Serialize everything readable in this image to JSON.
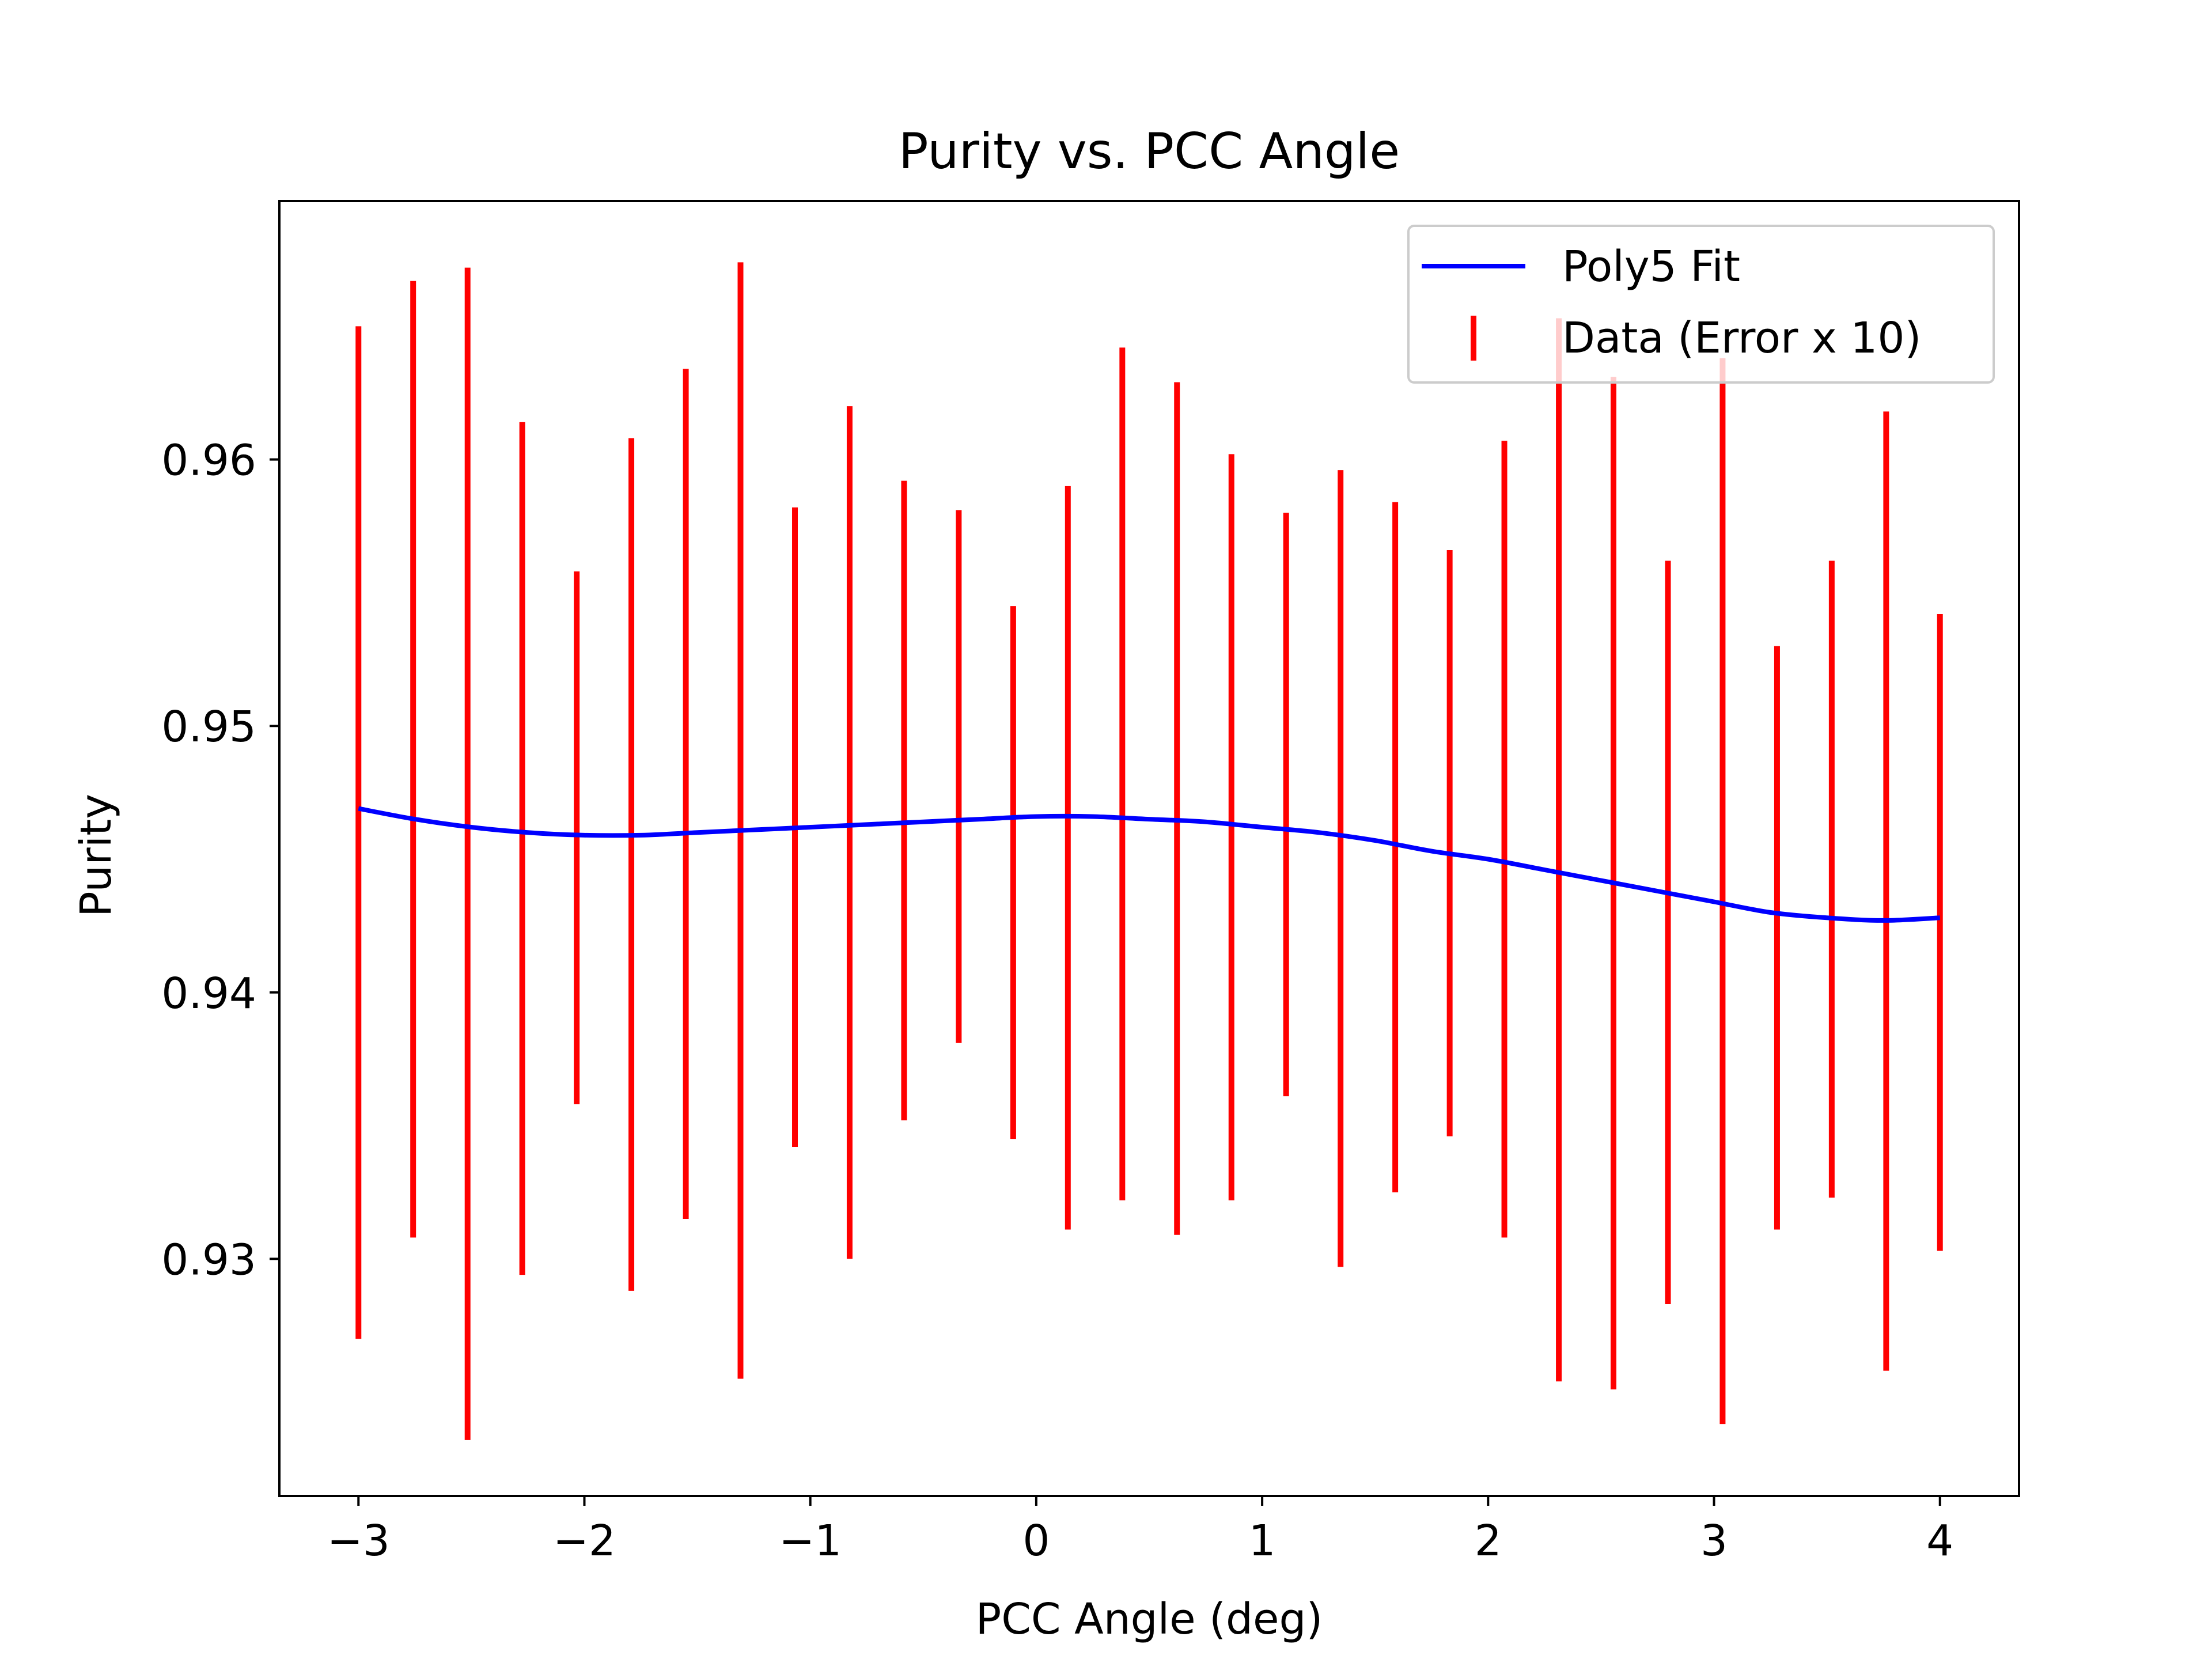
{
  "chart_data": {
    "type": "line",
    "title": "Purity vs. PCC Angle",
    "xlabel": "PCC Angle (deg)",
    "ylabel": "Purity",
    "xlim": [
      -3.35,
      4.35
    ],
    "ylim": [
      0.9211,
      0.9697
    ],
    "grid": false,
    "legend_position": "top-right",
    "x_ticks": [
      -3,
      -2,
      -1,
      0,
      1,
      2,
      3,
      4
    ],
    "x_tick_labels": [
      "−3",
      "−2",
      "−1",
      "0",
      "1",
      "2",
      "3",
      "4"
    ],
    "y_ticks": [
      0.93,
      0.94,
      0.95,
      0.96
    ],
    "y_tick_labels": [
      "0.93",
      "0.94",
      "0.95",
      "0.96"
    ],
    "series": [
      {
        "name": "Poly5 Fit",
        "kind": "line",
        "color": "#0000ff",
        "x": [
          -3.0,
          -2.75,
          -2.5,
          -2.25,
          -2.0,
          -1.75,
          -1.5,
          -1.25,
          -1.0,
          -0.75,
          -0.5,
          -0.25,
          0.0,
          0.25,
          0.5,
          0.75,
          1.0,
          1.25,
          1.5,
          1.75,
          2.0,
          2.25,
          2.5,
          2.75,
          3.0,
          3.25,
          3.5,
          3.75,
          4.0
        ],
        "y": [
          0.9469,
          0.9465,
          0.9462,
          0.946,
          0.9459,
          0.9459,
          0.946,
          0.9461,
          0.9462,
          0.9463,
          0.9464,
          0.9465,
          0.9466,
          0.9466,
          0.9465,
          0.9464,
          0.9462,
          0.946,
          0.9457,
          0.9453,
          0.945,
          0.9446,
          0.9442,
          0.9438,
          0.9434,
          0.943,
          0.9428,
          0.9427,
          0.9428
        ]
      },
      {
        "name": "Data (Error x 10)",
        "kind": "errorbar",
        "color": "#ff0000",
        "x": [
          -3.0,
          -2.758,
          -2.517,
          -2.275,
          -2.034,
          -1.792,
          -1.551,
          -1.309,
          -1.068,
          -0.826,
          -0.585,
          -0.343,
          -0.102,
          0.14,
          0.381,
          0.623,
          0.864,
          1.106,
          1.347,
          1.589,
          1.83,
          2.072,
          2.313,
          2.555,
          2.796,
          3.038,
          3.279,
          3.521,
          3.762,
          4.0
        ],
        "low": [
          0.927,
          0.9308,
          0.9232,
          0.9294,
          0.9358,
          0.9288,
          0.9315,
          0.9255,
          0.9342,
          0.93,
          0.9352,
          0.9381,
          0.9345,
          0.9311,
          0.9322,
          0.9309,
          0.9322,
          0.9361,
          0.9297,
          0.9325,
          0.9346,
          0.9308,
          0.9254,
          0.9251,
          0.9283,
          0.9238,
          0.9311,
          0.9323,
          0.9258,
          0.9303
        ],
        "high": [
          0.965,
          0.9667,
          0.9672,
          0.9614,
          0.9558,
          0.9608,
          0.9634,
          0.9674,
          0.9582,
          0.962,
          0.9592,
          0.9581,
          0.9545,
          0.959,
          0.9642,
          0.9629,
          0.9602,
          0.958,
          0.9596,
          0.9584,
          0.9566,
          0.9607,
          0.9653,
          0.9631,
          0.9562,
          0.9638,
          0.953,
          0.9562,
          0.9618,
          0.9542
        ]
      }
    ]
  }
}
